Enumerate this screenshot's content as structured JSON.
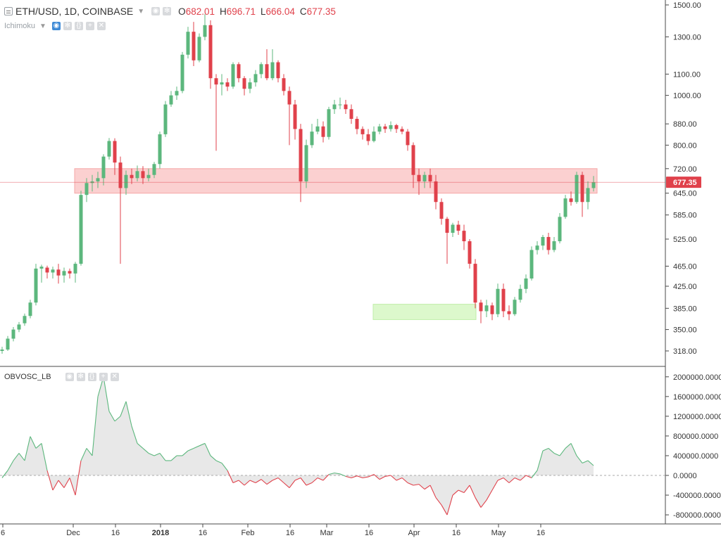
{
  "header": {
    "symbol_title": "ETH/USD, 1D, COINBASE",
    "ohlc": [
      {
        "key": "O",
        "value": "682.01"
      },
      {
        "key": "H",
        "value": "696.71"
      },
      {
        "key": "L",
        "value": "666.04"
      },
      {
        "key": "C",
        "value": "677.35"
      }
    ]
  },
  "indicators": {
    "main": "Ichimoku",
    "oscillator": "OBVOSC_LB"
  },
  "colors": {
    "up": "#5cb77d",
    "down": "#e0414b",
    "resistance_zone": "#fbd0d0",
    "support_zone": "#dcf8cc",
    "osc_positive": "#5cb77d",
    "osc_negative": "#e0414b"
  },
  "chart_data": [
    {
      "type": "candlestick",
      "scale": "log",
      "price_labels": [
        "1500.00",
        "1300.00",
        "1100.00",
        "1000.00",
        "880.00",
        "800.00",
        "720.00",
        "645.00",
        "585.00",
        "525.00",
        "465.00",
        "425.00",
        "385.00",
        "350.00",
        "318.00"
      ],
      "price_ticks": [
        1500,
        1300,
        1100,
        1000,
        880,
        800,
        720,
        645,
        585,
        525,
        465,
        425,
        385,
        350,
        318
      ],
      "last_price": 677.35,
      "last_price_label": "677.35",
      "x_labels": [
        {
          "t": "6",
          "day": 0
        },
        {
          "t": "Dec",
          "day": 25
        },
        {
          "t": "16",
          "day": 40
        },
        {
          "t": "2018",
          "day": 56
        },
        {
          "t": "16",
          "day": 71
        },
        {
          "t": "Feb",
          "day": 87
        },
        {
          "t": "16",
          "day": 102
        },
        {
          "t": "Mar",
          "day": 115
        },
        {
          "t": "16",
          "day": 130
        },
        {
          "t": "Apr",
          "day": 146
        },
        {
          "t": "16",
          "day": 161
        },
        {
          "t": "May",
          "day": 176
        },
        {
          "t": "16",
          "day": 191
        }
      ],
      "zones": [
        {
          "kind": "resistance",
          "from_day": 27,
          "to_day": 210,
          "low": 645,
          "high": 720
        },
        {
          "kind": "support",
          "from_day": 133,
          "to_day": 167,
          "low": 366,
          "high": 392
        }
      ],
      "candles": [
        [
          0,
          318,
          320,
          324,
          314
        ],
        [
          2,
          320,
          336,
          340,
          318
        ],
        [
          4,
          336,
          350,
          354,
          332
        ],
        [
          6,
          350,
          358,
          362,
          346
        ],
        [
          8,
          360,
          372,
          376,
          356
        ],
        [
          10,
          372,
          395,
          400,
          368
        ],
        [
          12,
          395,
          460,
          470,
          390
        ],
        [
          14,
          460,
          464,
          468,
          432
        ],
        [
          16,
          462,
          452,
          466,
          440
        ],
        [
          18,
          452,
          458,
          464,
          440
        ],
        [
          20,
          458,
          446,
          470,
          430
        ],
        [
          22,
          446,
          455,
          462,
          432
        ],
        [
          24,
          455,
          450,
          460,
          440
        ],
        [
          26,
          450,
          470,
          474,
          432
        ],
        [
          28,
          470,
          640,
          652,
          466
        ],
        [
          30,
          640,
          675,
          690,
          620
        ],
        [
          32,
          675,
          680,
          700,
          650
        ],
        [
          34,
          680,
          690,
          710,
          660
        ],
        [
          36,
          690,
          760,
          768,
          668
        ],
        [
          38,
          760,
          815,
          826,
          750
        ],
        [
          40,
          815,
          740,
          825,
          700
        ],
        [
          42,
          740,
          660,
          760,
          470
        ],
        [
          44,
          660,
          700,
          714,
          640
        ],
        [
          46,
          700,
          690,
          720,
          672
        ],
        [
          48,
          690,
          712,
          730,
          680
        ],
        [
          50,
          712,
          690,
          728,
          672
        ],
        [
          52,
          690,
          700,
          720,
          680
        ],
        [
          54,
          700,
          735,
          742,
          690
        ],
        [
          56,
          735,
          840,
          850,
          720
        ],
        [
          58,
          840,
          960,
          975,
          830
        ],
        [
          60,
          960,
          1000,
          1020,
          950
        ],
        [
          62,
          1000,
          1020,
          1040,
          980
        ],
        [
          64,
          1020,
          1200,
          1215,
          1010
        ],
        [
          66,
          1200,
          1330,
          1360,
          1180
        ],
        [
          68,
          1330,
          1170,
          1390,
          1140
        ],
        [
          70,
          1170,
          1300,
          1320,
          1160
        ],
        [
          72,
          1300,
          1370,
          1440,
          1280
        ],
        [
          74,
          1370,
          1080,
          1400,
          1030
        ],
        [
          76,
          1080,
          1050,
          1100,
          780
        ],
        [
          78,
          1050,
          1060,
          1100,
          1000
        ],
        [
          80,
          1060,
          1040,
          1080,
          1020
        ],
        [
          82,
          1040,
          1150,
          1160,
          1030
        ],
        [
          84,
          1150,
          1080,
          1160,
          1060
        ],
        [
          86,
          1080,
          1030,
          1090,
          1000
        ],
        [
          88,
          1030,
          1060,
          1080,
          1010
        ],
        [
          90,
          1060,
          1100,
          1120,
          1040
        ],
        [
          92,
          1100,
          1150,
          1160,
          1080
        ],
        [
          94,
          1150,
          1080,
          1230,
          1070
        ],
        [
          96,
          1080,
          1160,
          1230,
          1070
        ],
        [
          98,
          1160,
          1080,
          1170,
          1060
        ],
        [
          100,
          1080,
          1020,
          1100,
          1000
        ],
        [
          102,
          1020,
          960,
          1040,
          800
        ],
        [
          104,
          960,
          860,
          980,
          820
        ],
        [
          106,
          860,
          680,
          880,
          620
        ],
        [
          108,
          680,
          800,
          820,
          660
        ],
        [
          110,
          800,
          850,
          880,
          790
        ],
        [
          112,
          850,
          870,
          900,
          840
        ],
        [
          114,
          870,
          830,
          890,
          810
        ],
        [
          116,
          830,
          940,
          950,
          820
        ],
        [
          118,
          940,
          960,
          980,
          920
        ],
        [
          120,
          960,
          960,
          990,
          940
        ],
        [
          122,
          960,
          940,
          980,
          920
        ],
        [
          124,
          940,
          900,
          960,
          880
        ],
        [
          126,
          900,
          860,
          910,
          840
        ],
        [
          128,
          860,
          840,
          870,
          820
        ],
        [
          130,
          840,
          815,
          860,
          800
        ],
        [
          132,
          815,
          850,
          870,
          810
        ],
        [
          134,
          850,
          870,
          880,
          840
        ],
        [
          136,
          870,
          860,
          880,
          845
        ],
        [
          138,
          860,
          875,
          890,
          850
        ],
        [
          140,
          875,
          860,
          880,
          845
        ],
        [
          142,
          860,
          850,
          870,
          840
        ],
        [
          144,
          850,
          800,
          860,
          780
        ],
        [
          146,
          800,
          700,
          810,
          660
        ],
        [
          148,
          700,
          680,
          720,
          640
        ],
        [
          150,
          680,
          700,
          710,
          660
        ],
        [
          152,
          700,
          680,
          720,
          660
        ],
        [
          154,
          680,
          620,
          700,
          600
        ],
        [
          156,
          620,
          575,
          630,
          560
        ],
        [
          158,
          575,
          540,
          580,
          470
        ],
        [
          160,
          540,
          560,
          565,
          530
        ],
        [
          162,
          560,
          545,
          570,
          535
        ],
        [
          164,
          545,
          520,
          560,
          500
        ],
        [
          166,
          520,
          470,
          525,
          460
        ],
        [
          168,
          470,
          395,
          480,
          385
        ],
        [
          170,
          395,
          380,
          400,
          360
        ],
        [
          172,
          380,
          390,
          400,
          370
        ],
        [
          174,
          390,
          375,
          395,
          365
        ],
        [
          176,
          375,
          420,
          430,
          370
        ],
        [
          178,
          420,
          380,
          430,
          370
        ],
        [
          180,
          380,
          375,
          390,
          365
        ],
        [
          182,
          375,
          400,
          405,
          372
        ],
        [
          184,
          400,
          420,
          428,
          395
        ],
        [
          186,
          420,
          440,
          448,
          412
        ],
        [
          188,
          440,
          500,
          508,
          436
        ],
        [
          190,
          500,
          510,
          520,
          490
        ],
        [
          192,
          510,
          530,
          535,
          500
        ],
        [
          194,
          530,
          500,
          540,
          490
        ],
        [
          196,
          500,
          520,
          530,
          495
        ],
        [
          198,
          520,
          580,
          590,
          515
        ],
        [
          200,
          580,
          630,
          640,
          575
        ],
        [
          202,
          630,
          620,
          650,
          610
        ],
        [
          204,
          620,
          700,
          710,
          615
        ],
        [
          206,
          700,
          620,
          710,
          580
        ],
        [
          208,
          620,
          660,
          680,
          600
        ],
        [
          210,
          660,
          677.35,
          696.71,
          650
        ]
      ]
    },
    {
      "type": "area",
      "name": "OBVOSC_LB",
      "y_labels": [
        "2000000.0000",
        "1600000.0000",
        "1200000.0000",
        "800000.0000",
        "400000.0000",
        "0.0000",
        "-400000.0000",
        "-800000.0000"
      ],
      "y_ticks": [
        2000000,
        1600000,
        1200000,
        800000,
        400000,
        0,
        -400000,
        -800000
      ],
      "points": [
        [
          0,
          -50000
        ],
        [
          2,
          100000
        ],
        [
          4,
          300000
        ],
        [
          6,
          450000
        ],
        [
          8,
          300000
        ],
        [
          10,
          790000
        ],
        [
          12,
          550000
        ],
        [
          14,
          650000
        ],
        [
          16,
          100000
        ],
        [
          18,
          -300000
        ],
        [
          20,
          -100000
        ],
        [
          22,
          -250000
        ],
        [
          24,
          -50000
        ],
        [
          26,
          -400000
        ],
        [
          28,
          300000
        ],
        [
          30,
          550000
        ],
        [
          32,
          400000
        ],
        [
          34,
          1600000
        ],
        [
          36,
          2000000
        ],
        [
          38,
          1300000
        ],
        [
          40,
          1100000
        ],
        [
          42,
          1200000
        ],
        [
          44,
          1500000
        ],
        [
          46,
          1000000
        ],
        [
          48,
          650000
        ],
        [
          50,
          550000
        ],
        [
          52,
          450000
        ],
        [
          54,
          400000
        ],
        [
          56,
          450000
        ],
        [
          58,
          300000
        ],
        [
          60,
          300000
        ],
        [
          62,
          400000
        ],
        [
          64,
          400000
        ],
        [
          66,
          500000
        ],
        [
          68,
          550000
        ],
        [
          70,
          600000
        ],
        [
          72,
          650000
        ],
        [
          74,
          400000
        ],
        [
          76,
          300000
        ],
        [
          78,
          250000
        ],
        [
          80,
          100000
        ],
        [
          82,
          -150000
        ],
        [
          84,
          -100000
        ],
        [
          86,
          -200000
        ],
        [
          88,
          -100000
        ],
        [
          90,
          -150000
        ],
        [
          92,
          -80000
        ],
        [
          94,
          -180000
        ],
        [
          96,
          -100000
        ],
        [
          98,
          -50000
        ],
        [
          100,
          -150000
        ],
        [
          102,
          -250000
        ],
        [
          104,
          -100000
        ],
        [
          106,
          -50000
        ],
        [
          108,
          -200000
        ],
        [
          110,
          -150000
        ],
        [
          112,
          -50000
        ],
        [
          114,
          -100000
        ],
        [
          116,
          20000
        ],
        [
          118,
          50000
        ],
        [
          120,
          30000
        ],
        [
          122,
          -20000
        ],
        [
          124,
          -50000
        ],
        [
          126,
          -10000
        ],
        [
          128,
          -50000
        ],
        [
          130,
          -30000
        ],
        [
          132,
          20000
        ],
        [
          134,
          -80000
        ],
        [
          136,
          -20000
        ],
        [
          138,
          0
        ],
        [
          140,
          -100000
        ],
        [
          142,
          -50000
        ],
        [
          144,
          -150000
        ],
        [
          146,
          -200000
        ],
        [
          148,
          -180000
        ],
        [
          150,
          -280000
        ],
        [
          152,
          -200000
        ],
        [
          154,
          -450000
        ],
        [
          156,
          -600000
        ],
        [
          158,
          -800000
        ],
        [
          160,
          -400000
        ],
        [
          162,
          -300000
        ],
        [
          164,
          -350000
        ],
        [
          166,
          -200000
        ],
        [
          168,
          -450000
        ],
        [
          170,
          -650000
        ],
        [
          172,
          -500000
        ],
        [
          174,
          -300000
        ],
        [
          176,
          -100000
        ],
        [
          178,
          -50000
        ],
        [
          180,
          -150000
        ],
        [
          182,
          -50000
        ],
        [
          184,
          -100000
        ],
        [
          186,
          0
        ],
        [
          188,
          -50000
        ],
        [
          190,
          100000
        ],
        [
          192,
          500000
        ],
        [
          194,
          550000
        ],
        [
          196,
          450000
        ],
        [
          198,
          400000
        ],
        [
          200,
          550000
        ],
        [
          202,
          650000
        ],
        [
          204,
          400000
        ],
        [
          206,
          250000
        ],
        [
          208,
          300000
        ],
        [
          210,
          200000
        ]
      ]
    }
  ]
}
